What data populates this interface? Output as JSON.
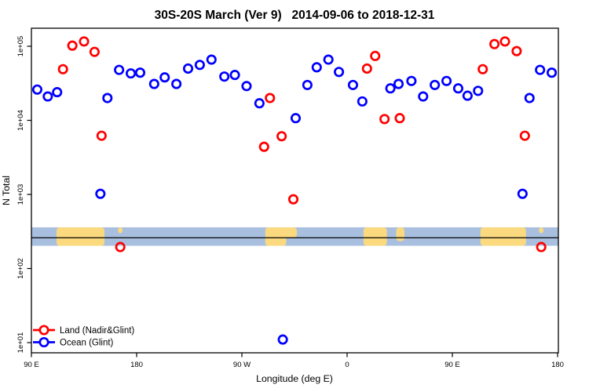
{
  "chart_data": {
    "type": "scatter",
    "title": "30S-20S March (Ver 9)   2014-09-06 to 2018-12-31",
    "xlabel": "Longitude (deg E)",
    "ylabel": "N Total",
    "grid": false,
    "marker": "open-circle",
    "x_axis": {
      "unit": "deg E (wrapping eastward from 90E)",
      "min": 90,
      "max": 540,
      "ticks": [
        {
          "lon": 90,
          "label": "90 E"
        },
        {
          "lon": 180,
          "label": "180"
        },
        {
          "lon": 270,
          "label": "90 W"
        },
        {
          "lon": 360,
          "label": "0"
        },
        {
          "lon": 450,
          "label": "90 E"
        },
        {
          "lon": 540,
          "label": "180"
        }
      ]
    },
    "y_axis": {
      "scale": "log10",
      "min_exp": 1,
      "max_exp": 5,
      "ticks": [
        {
          "exp": 1,
          "label": "1e+01"
        },
        {
          "exp": 2,
          "label": "1e+02"
        },
        {
          "exp": 3,
          "label": "1e+03"
        },
        {
          "exp": 4,
          "label": "1e+04"
        },
        {
          "exp": 5,
          "label": "1e+05"
        }
      ]
    },
    "legend": {
      "position": "bottom-left"
    },
    "series": [
      {
        "name": "Land (Nadir&Glint)",
        "color": "#ff0000",
        "points": [
          [
            117,
            49000
          ],
          [
            125,
            102000
          ],
          [
            135,
            116000
          ],
          [
            144,
            84000
          ],
          [
            150,
            6200
          ],
          [
            166,
            195
          ],
          [
            289,
            4400
          ],
          [
            294,
            20000
          ],
          [
            304,
            6100
          ],
          [
            314,
            860
          ],
          [
            377,
            50000
          ],
          [
            384,
            74000
          ],
          [
            392,
            10400
          ],
          [
            405,
            10700
          ],
          [
            476,
            49000
          ],
          [
            486,
            107000
          ],
          [
            495,
            116000
          ],
          [
            505,
            86000
          ],
          [
            512,
            6200
          ],
          [
            526,
            195
          ]
        ]
      },
      {
        "name": "Ocean (Glint)",
        "color": "#0000ff",
        "points": [
          [
            95,
            26000
          ],
          [
            104,
            21000
          ],
          [
            112,
            24000
          ],
          [
            149,
            1020
          ],
          [
            155,
            20000
          ],
          [
            165,
            48000
          ],
          [
            175,
            43000
          ],
          [
            183,
            44000
          ],
          [
            195,
            31000
          ],
          [
            204,
            38000
          ],
          [
            214,
            31000
          ],
          [
            224,
            50000
          ],
          [
            234,
            56000
          ],
          [
            244,
            66000
          ],
          [
            255,
            39000
          ],
          [
            264,
            41000
          ],
          [
            274,
            29000
          ],
          [
            285,
            17000
          ],
          [
            305,
            11
          ],
          [
            316,
            10700
          ],
          [
            326,
            30000
          ],
          [
            334,
            52000
          ],
          [
            344,
            66000
          ],
          [
            353,
            45000
          ],
          [
            365,
            30000
          ],
          [
            373,
            18000
          ],
          [
            397,
            27000
          ],
          [
            404,
            31000
          ],
          [
            415,
            34000
          ],
          [
            425,
            21000
          ],
          [
            435,
            30000
          ],
          [
            445,
            34000
          ],
          [
            455,
            27000
          ],
          [
            463,
            21500
          ],
          [
            472,
            25000
          ],
          [
            510,
            1020
          ],
          [
            516,
            20000
          ],
          [
            525,
            48000
          ],
          [
            535,
            44000
          ]
        ]
      }
    ],
    "map_band": {
      "description": "latitude strip map 30S-20S drawn across plot",
      "log_top": 2.556,
      "log_bottom": 2.307,
      "log_line": 2.415,
      "ocean_color": "#a8bfe0",
      "land_color": "#fbd97e",
      "line_color": "#000000",
      "land_patches": [
        {
          "lon0": 111.5,
          "lon1": 152.5,
          "frac0": 0,
          "frac1": 1
        },
        {
          "lon0": 164,
          "lon1": 168,
          "frac0": 0,
          "frac1": 0.32
        },
        {
          "lon0": 290,
          "lon1": 317,
          "frac0": 0,
          "frac1": 0.55
        },
        {
          "lon0": 290,
          "lon1": 308,
          "frac0": 0.35,
          "frac1": 1
        },
        {
          "lon0": 374,
          "lon1": 394,
          "frac0": 0,
          "frac1": 1
        },
        {
          "lon0": 402,
          "lon1": 409,
          "frac0": 0,
          "frac1": 0.75
        },
        {
          "lon0": 474,
          "lon1": 513,
          "frac0": 0,
          "frac1": 1
        },
        {
          "lon0": 524,
          "lon1": 528,
          "frac0": 0,
          "frac1": 0.32
        }
      ]
    },
    "colors": {
      "background": "#ffffff",
      "axis": "#000000"
    }
  }
}
